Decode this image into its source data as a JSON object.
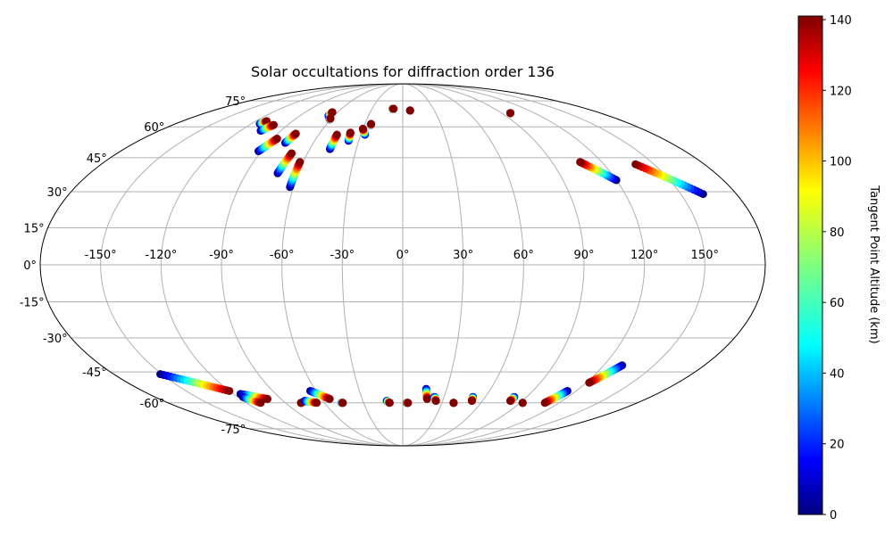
{
  "chart_data": {
    "type": "scatter",
    "projection": "mollweide",
    "title": "Solar occultations for diffraction order 136",
    "x_tick_labels": [
      "-150°",
      "-120°",
      "-90°",
      "-60°",
      "-30°",
      "0°",
      "30°",
      "60°",
      "90°",
      "120°",
      "150°"
    ],
    "x_ticks": [
      -150,
      -120,
      -90,
      -60,
      -30,
      0,
      30,
      60,
      90,
      120,
      150
    ],
    "y_tick_labels": [
      "-75°",
      "-60°",
      "-45°",
      "-30°",
      "-15°",
      "0°",
      "15°",
      "30°",
      "45°",
      "60°",
      "75°"
    ],
    "y_ticks": [
      -75,
      -60,
      -45,
      -30,
      -15,
      0,
      15,
      30,
      45,
      60,
      75
    ],
    "xlim": [
      -180,
      180
    ],
    "ylim": [
      -90,
      90
    ],
    "grid": true,
    "colorbar": {
      "label": "Tangent Point Altitude (km)",
      "colormap": "jet",
      "range": [
        0,
        141
      ],
      "ticks": [
        0,
        20,
        40,
        60,
        80,
        100,
        120,
        140
      ],
      "tick_labels": [
        "0",
        "20",
        "40",
        "60",
        "80",
        "100",
        "120",
        "140"
      ]
    },
    "series": [
      {
        "values": [
          {
            "lon": -113,
            "lat": 61.5
          },
          {
            "lon": -111,
            "lat": 63
          }
        ]
      },
      {
        "values": [
          {
            "lon": -105,
            "lat": 58
          },
          {
            "lon": -101,
            "lat": 61
          }
        ]
      },
      {
        "values": [
          {
            "lon": -92,
            "lat": 48
          },
          {
            "lon": -87,
            "lat": 54
          }
        ]
      },
      {
        "values": [
          {
            "lon": -79,
            "lat": 52
          },
          {
            "lon": -77,
            "lat": 56.5
          }
        ]
      },
      {
        "values": [
          {
            "lon": -72,
            "lat": 38
          },
          {
            "lon": -70,
            "lat": 47
          }
        ]
      },
      {
        "values": [
          {
            "lon": -62,
            "lat": 32
          },
          {
            "lon": -62,
            "lat": 43
          }
        ]
      },
      {
        "values": [
          {
            "lon": -65,
            "lat": 66
          },
          {
            "lon": -65,
            "lat": 68
          }
        ]
      },
      {
        "values": [
          {
            "lon": -61,
            "lat": 64
          },
          {
            "lon": -61,
            "lat": 64.5
          }
        ]
      },
      {
        "values": [
          {
            "lon": -47,
            "lat": 49
          },
          {
            "lon": -47,
            "lat": 56
          }
        ]
      },
      {
        "values": [
          {
            "lon": -37,
            "lat": 53
          },
          {
            "lon": -38,
            "lat": 57
          }
        ]
      },
      {
        "values": [
          {
            "lon": -27,
            "lat": 56
          },
          {
            "lon": -30,
            "lat": 59
          }
        ]
      },
      {
        "values": [
          {
            "lon": -25,
            "lat": 61
          },
          {
            "lon": -25,
            "lat": 61.5
          }
        ]
      },
      {
        "values": [
          {
            "lon": -10,
            "lat": 70
          },
          {
            "lon": -9,
            "lat": 70
          }
        ]
      },
      {
        "values": [
          {
            "lon": 7,
            "lat": 69
          },
          {
            "lon": 7,
            "lat": 69
          }
        ]
      },
      {
        "values": [
          {
            "lon": 98,
            "lat": 67.5
          },
          {
            "lon": 98,
            "lat": 67.5
          }
        ]
      },
      {
        "values": [
          {
            "lon": 120,
            "lat": 35
          },
          {
            "lon": 107,
            "lat": 43
          }
        ]
      },
      {
        "values": [
          {
            "lon": 162,
            "lat": 29
          },
          {
            "lon": 139,
            "lat": 42
          }
        ]
      },
      {
        "values": [
          {
            "lon": -151,
            "lat": -46
          },
          {
            "lon": -120,
            "lat": -54
          }
        ]
      },
      {
        "values": [
          {
            "lon": -115,
            "lat": -55.5
          },
          {
            "lon": -100,
            "lat": -58
          }
        ]
      },
      {
        "values": [
          {
            "lon": -116,
            "lat": -57
          },
          {
            "lon": -109,
            "lat": -60
          }
        ]
      },
      {
        "values": [
          {
            "lon": -78,
            "lat": -60
          },
          {
            "lon": -78,
            "lat": -60
          }
        ]
      },
      {
        "values": [
          {
            "lon": -74,
            "lat": -59
          },
          {
            "lon": -66,
            "lat": -60
          }
        ]
      },
      {
        "values": [
          {
            "lon": -64,
            "lat": -54
          },
          {
            "lon": -54,
            "lat": -58
          }
        ]
      },
      {
        "values": [
          {
            "lon": -47,
            "lat": -60
          },
          {
            "lon": -46,
            "lat": -60
          }
        ]
      },
      {
        "values": [
          {
            "lon": -12,
            "lat": -59
          },
          {
            "lon": -10,
            "lat": -60
          }
        ]
      },
      {
        "values": [
          {
            "lon": 3,
            "lat": -60
          },
          {
            "lon": 4,
            "lat": -60
          }
        ]
      },
      {
        "values": [
          {
            "lon": 16,
            "lat": -53
          },
          {
            "lon": 18,
            "lat": -58
          }
        ]
      },
      {
        "values": [
          {
            "lon": 23,
            "lat": -57
          },
          {
            "lon": 25,
            "lat": -59
          }
        ]
      },
      {
        "values": [
          {
            "lon": 39,
            "lat": -60
          },
          {
            "lon": 39,
            "lat": -60
          }
        ]
      },
      {
        "values": [
          {
            "lon": 51,
            "lat": -57
          },
          {
            "lon": 52,
            "lat": -59
          }
        ]
      },
      {
        "values": [
          {
            "lon": 81,
            "lat": -57
          },
          {
            "lon": 81,
            "lat": -59
          }
        ]
      },
      {
        "values": [
          {
            "lon": 92,
            "lat": -60
          },
          {
            "lon": 92,
            "lat": -60
          }
        ]
      },
      {
        "values": [
          {
            "lon": 114,
            "lat": -54
          },
          {
            "lon": 109,
            "lat": -60
          }
        ]
      },
      {
        "values": [
          {
            "lon": 131,
            "lat": -42
          },
          {
            "lon": 122,
            "lat": -50
          }
        ]
      }
    ]
  }
}
